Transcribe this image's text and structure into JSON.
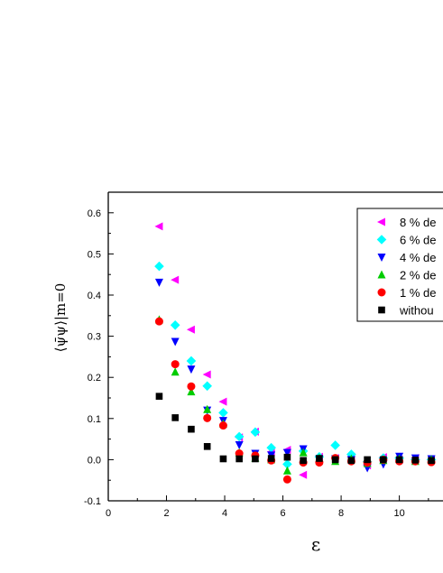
{
  "chart_data": {
    "type": "scatter",
    "xlabel": "ε",
    "ylabel": "⟨ψ̄ψ⟩|m=0",
    "xlim": [
      0,
      11.5
    ],
    "ylim": [
      -0.1,
      0.65
    ],
    "x_ticks": [
      "0",
      "2",
      "4",
      "6",
      "8",
      "10"
    ],
    "y_ticks": [
      "-0.1",
      "0.0",
      "0.1",
      "0.2",
      "0.3",
      "0.4",
      "0.5",
      "0.6"
    ],
    "legend_position": "top-right",
    "series": [
      {
        "name": "8 % de",
        "marker": "triangle-left",
        "color": "#ff00ff",
        "x": [
          1.75,
          2.3,
          2.85,
          3.4,
          3.95,
          4.5,
          5.05,
          5.6,
          6.15,
          6.7,
          7.25,
          7.8,
          8.35,
          8.9,
          9.45,
          10.0,
          10.55,
          11.1
        ],
        "y": [
          0.567,
          0.437,
          0.316,
          0.207,
          0.141,
          0.054,
          0.068,
          0.019,
          0.024,
          -0.037,
          0.007,
          0.004,
          0.007,
          -0.014,
          0.006,
          0.0,
          0.004,
          0.0
        ]
      },
      {
        "name": "6 % de",
        "marker": "diamond",
        "color": "#00ffff",
        "x": [
          1.75,
          2.3,
          2.85,
          3.4,
          3.95,
          4.5,
          5.05,
          5.6,
          6.15,
          6.7,
          7.25,
          7.8,
          8.35,
          8.9,
          9.45,
          10.0,
          10.55,
          11.1
        ],
        "y": [
          0.47,
          0.327,
          0.24,
          0.179,
          0.114,
          0.056,
          0.067,
          0.029,
          -0.011,
          0.021,
          0.007,
          0.035,
          0.013,
          -0.005,
          0.004,
          0.004,
          0.0,
          0.0
        ]
      },
      {
        "name": "4 % de",
        "marker": "triangle-down",
        "color": "#0000ff",
        "x": [
          1.75,
          2.3,
          2.85,
          3.4,
          3.95,
          4.5,
          5.05,
          5.6,
          6.15,
          6.7,
          7.25,
          7.8,
          8.35,
          8.9,
          9.45,
          10.0,
          10.55,
          11.1
        ],
        "y": [
          0.431,
          0.287,
          0.22,
          0.12,
          0.095,
          0.036,
          0.015,
          0.011,
          0.017,
          0.026,
          0.002,
          0.002,
          0.0,
          -0.02,
          -0.011,
          0.008,
          0.004,
          0.002
        ]
      },
      {
        "name": "2 % de",
        "marker": "triangle-up",
        "color": "#00cc00",
        "x": [
          1.75,
          2.3,
          2.85,
          3.4,
          3.95,
          4.5,
          5.05,
          5.6,
          6.15,
          6.7,
          7.25,
          7.8,
          8.35,
          8.9,
          9.45,
          10.0,
          10.55,
          11.1
        ],
        "y": [
          0.34,
          0.213,
          0.165,
          0.122,
          0.087,
          0.017,
          0.004,
          0.0,
          -0.027,
          0.017,
          0.004,
          -0.004,
          0.002,
          -0.009,
          -0.002,
          0.002,
          -0.004,
          0.0
        ]
      },
      {
        "name": "1 % de",
        "marker": "circle",
        "color": "#ff0000",
        "x": [
          1.75,
          2.3,
          2.85,
          3.4,
          3.95,
          4.5,
          5.05,
          5.6,
          6.15,
          6.7,
          7.25,
          7.8,
          8.35,
          8.9,
          9.45,
          10.0,
          10.55,
          11.1
        ],
        "y": [
          0.336,
          0.232,
          0.178,
          0.101,
          0.083,
          0.015,
          0.01,
          -0.002,
          -0.048,
          -0.007,
          -0.007,
          0.004,
          -0.004,
          -0.007,
          0.0,
          -0.004,
          -0.004,
          -0.006
        ]
      },
      {
        "name": "withou",
        "marker": "square",
        "color": "#000000",
        "x": [
          1.75,
          2.3,
          2.85,
          3.4,
          3.95,
          4.5,
          5.05,
          5.6,
          6.15,
          6.7,
          7.25,
          7.8,
          8.35,
          8.9,
          9.45,
          10.0,
          10.55,
          11.1
        ],
        "y": [
          0.154,
          0.102,
          0.074,
          0.032,
          0.002,
          0.002,
          0.002,
          0.003,
          0.006,
          -0.002,
          0.003,
          0.0,
          -0.002,
          0.0,
          0.0,
          0.0,
          -0.001,
          -0.002
        ]
      }
    ]
  }
}
